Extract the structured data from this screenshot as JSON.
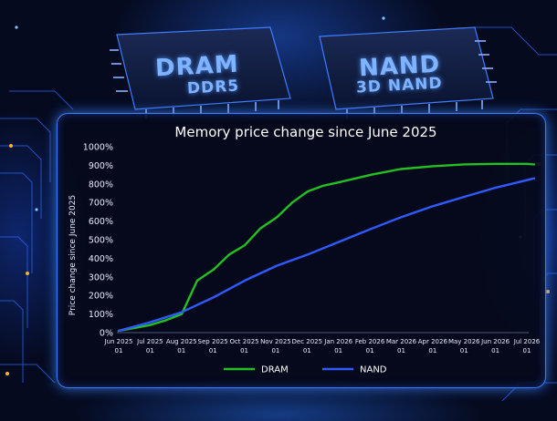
{
  "background": {
    "chips": [
      {
        "line1": "DRAM",
        "line2": "DDR5"
      },
      {
        "line1": "NAND",
        "line2": "3D NAND"
      }
    ]
  },
  "chart_data": {
    "type": "line",
    "title": "Memory price change since June 2025",
    "xlabel": "",
    "ylabel": "Price change since June 2025",
    "x_ticks": [
      [
        "Jun 2025",
        "01"
      ],
      [
        "Jul 2025",
        "01"
      ],
      [
        "Aug 2025",
        "01"
      ],
      [
        "Sep 2025",
        "01"
      ],
      [
        "Oct 2025",
        "01"
      ],
      [
        "Nov 2025",
        "01"
      ],
      [
        "Dec 2025",
        "01"
      ],
      [
        "Jan 2026",
        "01"
      ],
      [
        "Feb 2026",
        "01"
      ],
      [
        "Mar 2026",
        "01"
      ],
      [
        "Apr 2026",
        "01"
      ],
      [
        "May 2026",
        "01"
      ],
      [
        "Jun 2026",
        "01"
      ],
      [
        "Jul 2026",
        "01"
      ]
    ],
    "y_ticks": [
      "0%",
      "100%",
      "200%",
      "300%",
      "400%",
      "500%",
      "600%",
      "700%",
      "800%",
      "900%",
      "1000%"
    ],
    "ylim": [
      0,
      1000
    ],
    "grid": false,
    "legend_position": "bottom-center",
    "series": [
      {
        "name": "DRAM",
        "color": "#22c022",
        "x": [
          "2025-06-01",
          "2025-06-16",
          "2025-07-01",
          "2025-07-16",
          "2025-08-01",
          "2025-08-16",
          "2025-09-01",
          "2025-09-16",
          "2025-10-01",
          "2025-10-16",
          "2025-11-01",
          "2025-11-16",
          "2025-12-01",
          "2025-12-16",
          "2026-01-01",
          "2026-02-01",
          "2026-03-01",
          "2026-04-01",
          "2026-05-01",
          "2026-06-01",
          "2026-07-01",
          "2026-07-08"
        ],
        "values": [
          10,
          25,
          40,
          65,
          100,
          280,
          340,
          420,
          470,
          560,
          620,
          700,
          760,
          790,
          810,
          850,
          880,
          895,
          905,
          908,
          908,
          905
        ]
      },
      {
        "name": "NAND",
        "color": "#2e5bff",
        "x": [
          "2025-06-01",
          "2025-07-01",
          "2025-08-01",
          "2025-09-01",
          "2025-10-01",
          "2025-11-01",
          "2025-12-01",
          "2026-01-01",
          "2026-02-01",
          "2026-03-01",
          "2026-04-01",
          "2026-05-01",
          "2026-06-01",
          "2026-07-01",
          "2026-07-08"
        ],
        "values": [
          10,
          55,
          110,
          190,
          280,
          360,
          420,
          490,
          560,
          620,
          680,
          730,
          780,
          820,
          830
        ]
      }
    ]
  }
}
